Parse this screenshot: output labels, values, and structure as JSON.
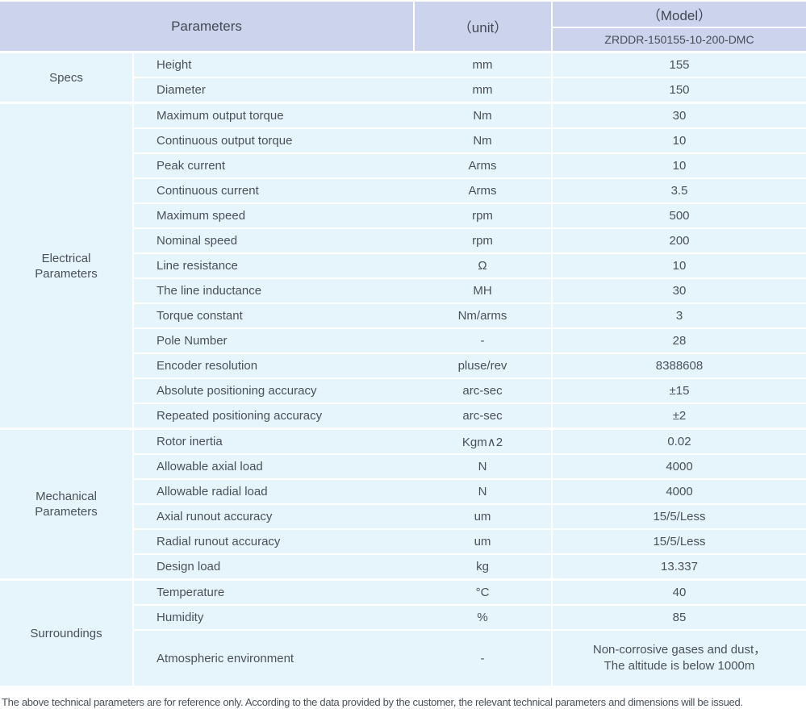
{
  "table": {
    "header": {
      "parameters": "Parameters",
      "unit": "（unit）",
      "model": "（Model）",
      "model_number": "ZRDDR-150155-10-200-DMC"
    },
    "sections": [
      {
        "group": "Specs",
        "rows": [
          {
            "label": "Height",
            "unit": "mm",
            "value": "155"
          },
          {
            "label": "Diameter",
            "unit": "mm",
            "value": "150"
          }
        ]
      },
      {
        "group": "Electrical Parameters",
        "rows": [
          {
            "label": "Maximum output torque",
            "unit": "Nm",
            "value": "30"
          },
          {
            "label": "Continuous output torque",
            "unit": "Nm",
            "value": "10"
          },
          {
            "label": "Peak current",
            "unit": "Arms",
            "value": "10"
          },
          {
            "label": "Continuous current",
            "unit": "Arms",
            "value": "3.5"
          },
          {
            "label": "Maximum speed",
            "unit": "rpm",
            "value": "500"
          },
          {
            "label": "Nominal speed",
            "unit": "rpm",
            "value": "200"
          },
          {
            "label": "Line resistance",
            "unit": "Ω",
            "value": "10"
          },
          {
            "label": "The line inductance",
            "unit": "MH",
            "value": "30"
          },
          {
            "label": "Torque constant",
            "unit": "Nm/arms",
            "value": "3"
          },
          {
            "label": "Pole Number",
            "unit": "-",
            "value": "28"
          },
          {
            "label": "Encoder resolution",
            "unit": "pluse/rev",
            "value": "8388608"
          },
          {
            "label": "Absolute positioning accuracy",
            "unit": "arc-sec",
            "value": "±15"
          },
          {
            "label": "Repeated positioning accuracy",
            "unit": "arc-sec",
            "value": "±2"
          }
        ]
      },
      {
        "group": "Mechanical Parameters",
        "rows": [
          {
            "label": "Rotor inertia",
            "unit": "Kgm∧2",
            "value": "0.02"
          },
          {
            "label": "Allowable axial load",
            "unit": "N",
            "value": "4000"
          },
          {
            "label": "Allowable radial load",
            "unit": "N",
            "value": "4000"
          },
          {
            "label": "Axial runout accuracy",
            "unit": "um",
            "value": "15/5/Less"
          },
          {
            "label": "Radial runout accuracy",
            "unit": "um",
            "value": "15/5/Less"
          },
          {
            "label": "Design load",
            "unit": "kg",
            "value": "13.337"
          }
        ]
      },
      {
        "group": "Surroundings",
        "rows": [
          {
            "label": "Temperature",
            "unit": "°C",
            "value": "40"
          },
          {
            "label": "Humidity",
            "unit": "%",
            "value": "85"
          },
          {
            "label": "Atmospheric environment",
            "unit": "-",
            "value": "Non-corrosive gases and dust，\nThe altitude is below 1000m"
          }
        ]
      }
    ]
  },
  "footer": {
    "note": "The above technical parameters are for reference only. According to the data provided by the customer, the relevant technical parameters and dimensions will be issued."
  },
  "colors": {
    "header_bg": "#cbd4ec",
    "row_bg": "#e6f4fc",
    "grid_line": "#ffffff",
    "text": "#4a515b"
  }
}
